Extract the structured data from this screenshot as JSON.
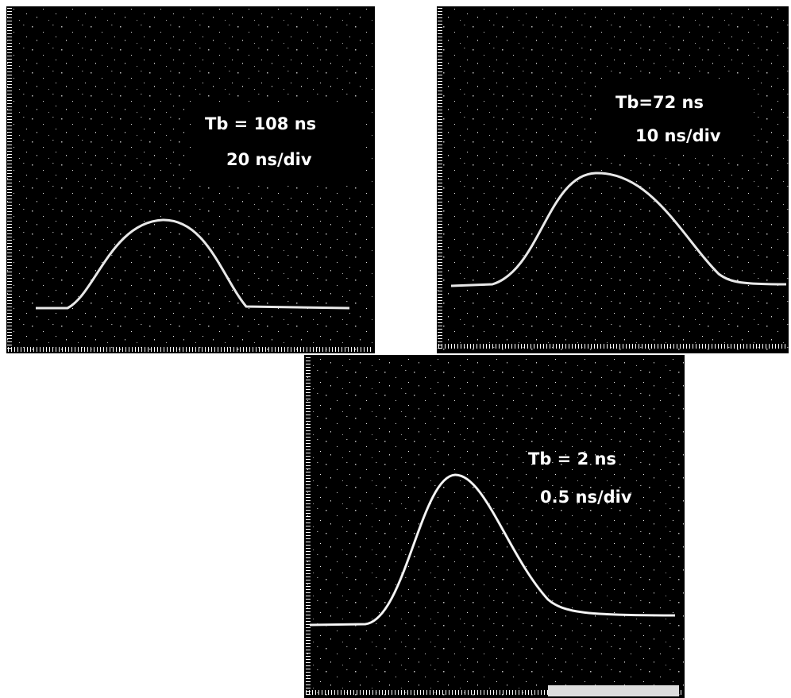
{
  "panels": [
    {
      "label": "Tb = 108 ns",
      "scale": "20 ns/div"
    },
    {
      "label": "Tb=72 ns",
      "scale": "10 ns/div"
    },
    {
      "label": "Tb = 2 ns",
      "scale": "0.5 ns/div"
    }
  ]
}
